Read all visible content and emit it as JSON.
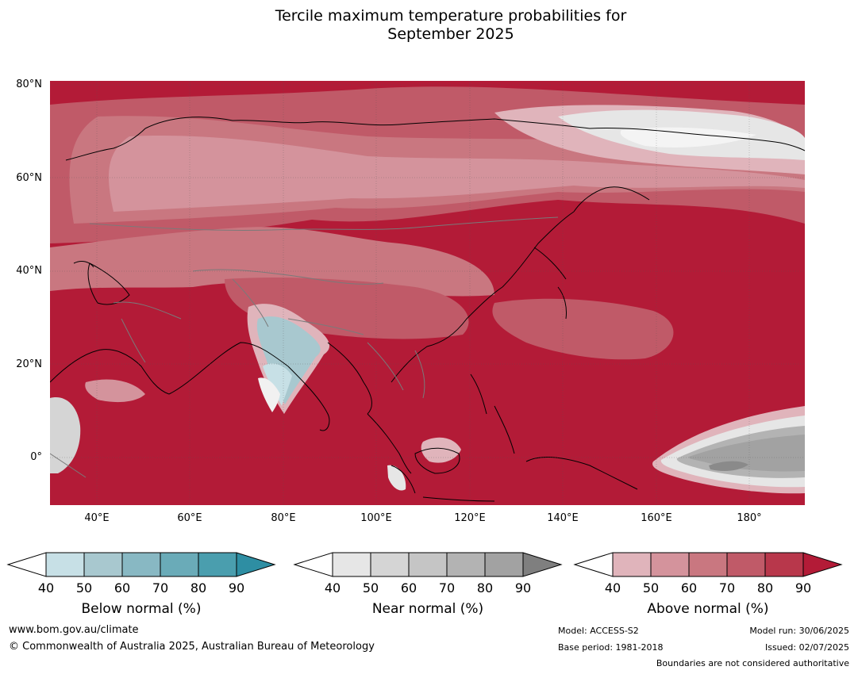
{
  "title": {
    "line1": "Tercile maximum temperature probabilities for",
    "line2": "September 2025"
  },
  "map": {
    "lat_labels": [
      "80°N",
      "60°N",
      "40°N",
      "20°N",
      "0°"
    ],
    "lon_labels": [
      "40°E",
      "60°E",
      "80°E",
      "100°E",
      "120°E",
      "140°E",
      "160°E",
      "180°"
    ],
    "extent": {
      "lon_min": 30,
      "lon_max": 192,
      "lat_min": -10,
      "lat_max": 81
    }
  },
  "legends": [
    {
      "title": "Below normal (%)",
      "ticks": [
        "40",
        "50",
        "60",
        "70",
        "80",
        "90"
      ],
      "colors": [
        "#c7e0e6",
        "#a8c8cf",
        "#88b8c3",
        "#6aabb8",
        "#4a9eae",
        "#2e8ea3"
      ]
    },
    {
      "title": "Near normal (%)",
      "ticks": [
        "40",
        "50",
        "60",
        "70",
        "80",
        "90"
      ],
      "colors": [
        "#e6e6e6",
        "#d5d5d5",
        "#c5c5c5",
        "#b3b3b3",
        "#a2a2a2",
        "#7f7f7f"
      ]
    },
    {
      "title": "Above normal (%)",
      "ticks": [
        "40",
        "50",
        "60",
        "70",
        "80",
        "90"
      ],
      "colors": [
        "#e0b4bb",
        "#d4939c",
        "#c97780",
        "#c05a68",
        "#b8374b",
        "#b31b37"
      ]
    }
  ],
  "footer": {
    "website": "www.bom.gov.au/climate",
    "copyright": "© Commonwealth of Australia 2025, Australian Bureau of Meteorology",
    "model": "Model: ACCESS-S2",
    "base_period": "Base period: 1981-2018",
    "model_run": "Model run: 30/06/2025",
    "issued": "Issued: 02/07/2025",
    "boundaries_note": "Boundaries are not considered authoritative"
  }
}
